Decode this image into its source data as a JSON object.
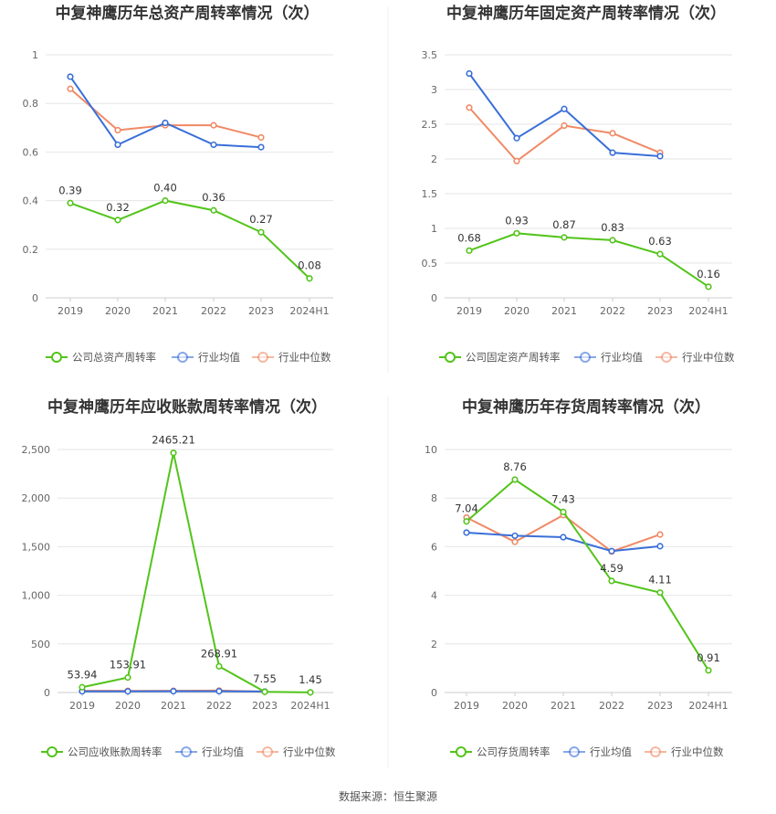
{
  "source_label": "数据来源：恒生聚源",
  "legend_industry_avg": "行业均值",
  "legend_industry_median": "行业中位数",
  "colors": {
    "company": "#52c41a",
    "avg": "#3a6fd8",
    "median": "#f08a65",
    "grid": "#e6e6e6",
    "axis": "#cccccc"
  },
  "chart_data": [
    {
      "type": "line",
      "title": "中复神鹰历年总资产周转率情况（次）",
      "categories": [
        "2019",
        "2020",
        "2021",
        "2022",
        "2023",
        "2024H1"
      ],
      "ylim": [
        0,
        1
      ],
      "yticks": [
        "0",
        "0.2",
        "0.4",
        "0.6",
        "0.8",
        "1"
      ],
      "series": [
        {
          "name": "公司总资产周转率",
          "role": "company",
          "values": [
            0.39,
            0.32,
            0.4,
            0.36,
            0.27,
            0.08
          ],
          "labels": [
            "0.39",
            "0.32",
            "0.40",
            "0.36",
            "0.27",
            "0.08"
          ]
        },
        {
          "name": "行业均值",
          "role": "avg",
          "values": [
            0.91,
            0.63,
            0.72,
            0.63,
            0.62,
            null
          ]
        },
        {
          "name": "行业中位数",
          "role": "median",
          "values": [
            0.86,
            0.69,
            0.71,
            0.71,
            0.66,
            null
          ]
        }
      ]
    },
    {
      "type": "line",
      "title": "中复神鹰历年固定资产周转率情况（次）",
      "categories": [
        "2019",
        "2020",
        "2021",
        "2022",
        "2023",
        "2024H1"
      ],
      "ylim": [
        0,
        3.5
      ],
      "yticks": [
        "0",
        "0.5",
        "1",
        "1.5",
        "2",
        "2.5",
        "3",
        "3.5"
      ],
      "series": [
        {
          "name": "公司固定资产周转率",
          "role": "company",
          "values": [
            0.68,
            0.93,
            0.87,
            0.83,
            0.63,
            0.16
          ],
          "labels": [
            "0.68",
            "0.93",
            "0.87",
            "0.83",
            "0.63",
            "0.16"
          ]
        },
        {
          "name": "行业均值",
          "role": "avg",
          "values": [
            3.23,
            2.3,
            2.72,
            2.09,
            2.04,
            null
          ]
        },
        {
          "name": "行业中位数",
          "role": "median",
          "values": [
            2.74,
            1.97,
            2.48,
            2.37,
            2.09,
            null
          ]
        }
      ]
    },
    {
      "type": "line",
      "title": "中复神鹰历年应收账款周转率情况（次）",
      "categories": [
        "2019",
        "2020",
        "2021",
        "2022",
        "2023",
        "2024H1"
      ],
      "ylim": [
        0,
        2500
      ],
      "yticks": [
        "0",
        "500",
        "1,000",
        "1,500",
        "2,000",
        "2,500"
      ],
      "series": [
        {
          "name": "公司应收账款周转率",
          "role": "company",
          "values": [
            53.94,
            153.91,
            2465.21,
            268.91,
            7.55,
            1.45
          ],
          "labels": [
            "53.94",
            "153.91",
            "2465.21",
            "268.91",
            "7.55",
            "1.45"
          ]
        },
        {
          "name": "行业均值",
          "role": "avg",
          "values": [
            12,
            12,
            13,
            13,
            10,
            null
          ]
        },
        {
          "name": "行业中位数",
          "role": "median",
          "values": [
            18,
            17,
            18,
            20,
            9,
            null
          ]
        }
      ]
    },
    {
      "type": "line",
      "title": "中复神鹰历年存货周转率情况（次）",
      "categories": [
        "2019",
        "2020",
        "2021",
        "2022",
        "2023",
        "2024H1"
      ],
      "ylim": [
        0,
        10
      ],
      "yticks": [
        "0",
        "2",
        "4",
        "6",
        "8",
        "10"
      ],
      "series": [
        {
          "name": "公司存货周转率",
          "role": "company",
          "values": [
            7.04,
            8.76,
            7.43,
            4.59,
            4.11,
            0.91
          ],
          "labels": [
            "7.04",
            "8.76",
            "7.43",
            "4.59",
            "4.11",
            "0.91"
          ]
        },
        {
          "name": "行业均值",
          "role": "avg",
          "values": [
            6.58,
            6.45,
            6.39,
            5.82,
            6.02,
            null
          ]
        },
        {
          "name": "行业中位数",
          "role": "median",
          "values": [
            7.2,
            6.2,
            7.3,
            5.8,
            6.5,
            null
          ]
        }
      ]
    }
  ]
}
